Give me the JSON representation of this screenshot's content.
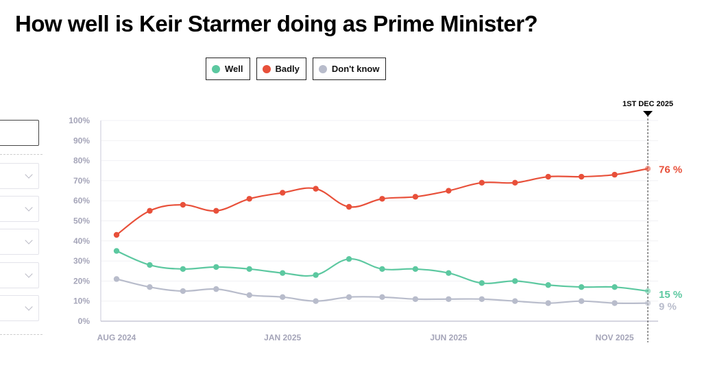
{
  "title": "How well is Keir Starmer doing as Prime Minister?",
  "legend": [
    {
      "label": "Well",
      "color": "#5cc8a0"
    },
    {
      "label": "Badly",
      "color": "#e8503a"
    },
    {
      "label": "Don't know",
      "color": "#b8bccb"
    }
  ],
  "sidebar": {
    "search_value": "",
    "selects": [
      "",
      "",
      "",
      "",
      ""
    ]
  },
  "chart_data": {
    "type": "line",
    "title": "How well is Keir Starmer doing as Prime Minister?",
    "xlabel": "",
    "ylabel": "",
    "ylim": [
      0,
      100
    ],
    "yticks": [
      "0%",
      "10%",
      "20%",
      "30%",
      "40%",
      "50%",
      "60%",
      "70%",
      "80%",
      "90%",
      "100%"
    ],
    "yticks_values": [
      0,
      10,
      20,
      30,
      40,
      50,
      60,
      70,
      80,
      90,
      100
    ],
    "xtick_labels": [
      {
        "label": "AUG 2024",
        "index": 0
      },
      {
        "label": "JAN 2025",
        "index": 5
      },
      {
        "label": "JUN 2025",
        "index": 10
      },
      {
        "label": "NOV 2025",
        "index": 15
      }
    ],
    "x_count": 17,
    "grid": true,
    "legend_position": "top",
    "marker": {
      "label": "1ST DEC 2025",
      "index": 16
    },
    "series": [
      {
        "name": "Badly",
        "color": "#e8503a",
        "end_label": "76 %",
        "values": [
          43,
          55,
          58,
          55,
          61,
          64,
          66,
          57,
          61,
          62,
          65,
          69,
          69,
          72,
          72,
          73,
          76
        ]
      },
      {
        "name": "Well",
        "color": "#5cc8a0",
        "end_label": "15 %",
        "values": [
          35,
          28,
          26,
          27,
          26,
          24,
          23,
          31,
          26,
          26,
          24,
          19,
          20,
          18,
          17,
          17,
          15
        ]
      },
      {
        "name": "Don't know",
        "color": "#b8bccb",
        "end_label": "9 %",
        "values": [
          21,
          17,
          15,
          16,
          13,
          12,
          10,
          12,
          12,
          11,
          11,
          11,
          10,
          9,
          10,
          9,
          9
        ]
      }
    ]
  }
}
